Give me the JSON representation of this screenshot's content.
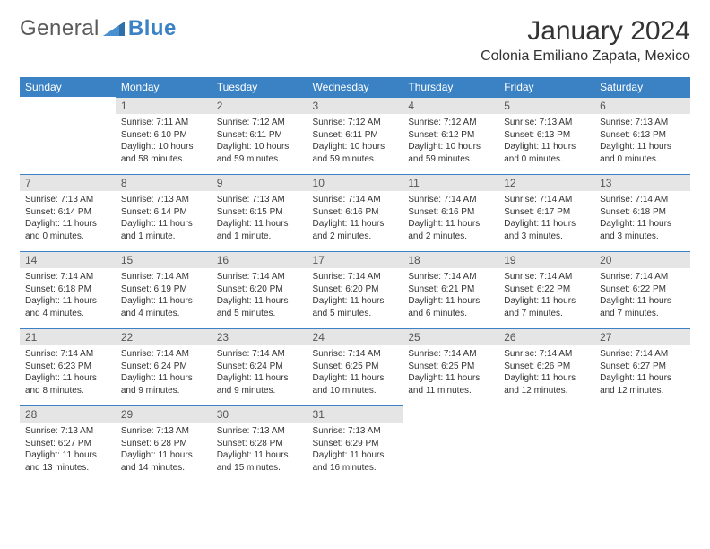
{
  "logo": {
    "general": "General",
    "blue": "Blue"
  },
  "title": "January 2024",
  "location": "Colonia Emiliano Zapata, Mexico",
  "colors": {
    "accent": "#3b82c4",
    "daynum_bg": "#e5e5e5"
  },
  "weekdays": [
    "Sunday",
    "Monday",
    "Tuesday",
    "Wednesday",
    "Thursday",
    "Friday",
    "Saturday"
  ],
  "weeks": [
    [
      null,
      {
        "n": "1",
        "sr": "Sunrise: 7:11 AM",
        "ss": "Sunset: 6:10 PM",
        "d1": "Daylight: 10 hours",
        "d2": "and 58 minutes."
      },
      {
        "n": "2",
        "sr": "Sunrise: 7:12 AM",
        "ss": "Sunset: 6:11 PM",
        "d1": "Daylight: 10 hours",
        "d2": "and 59 minutes."
      },
      {
        "n": "3",
        "sr": "Sunrise: 7:12 AM",
        "ss": "Sunset: 6:11 PM",
        "d1": "Daylight: 10 hours",
        "d2": "and 59 minutes."
      },
      {
        "n": "4",
        "sr": "Sunrise: 7:12 AM",
        "ss": "Sunset: 6:12 PM",
        "d1": "Daylight: 10 hours",
        "d2": "and 59 minutes."
      },
      {
        "n": "5",
        "sr": "Sunrise: 7:13 AM",
        "ss": "Sunset: 6:13 PM",
        "d1": "Daylight: 11 hours",
        "d2": "and 0 minutes."
      },
      {
        "n": "6",
        "sr": "Sunrise: 7:13 AM",
        "ss": "Sunset: 6:13 PM",
        "d1": "Daylight: 11 hours",
        "d2": "and 0 minutes."
      }
    ],
    [
      {
        "n": "7",
        "sr": "Sunrise: 7:13 AM",
        "ss": "Sunset: 6:14 PM",
        "d1": "Daylight: 11 hours",
        "d2": "and 0 minutes."
      },
      {
        "n": "8",
        "sr": "Sunrise: 7:13 AM",
        "ss": "Sunset: 6:14 PM",
        "d1": "Daylight: 11 hours",
        "d2": "and 1 minute."
      },
      {
        "n": "9",
        "sr": "Sunrise: 7:13 AM",
        "ss": "Sunset: 6:15 PM",
        "d1": "Daylight: 11 hours",
        "d2": "and 1 minute."
      },
      {
        "n": "10",
        "sr": "Sunrise: 7:14 AM",
        "ss": "Sunset: 6:16 PM",
        "d1": "Daylight: 11 hours",
        "d2": "and 2 minutes."
      },
      {
        "n": "11",
        "sr": "Sunrise: 7:14 AM",
        "ss": "Sunset: 6:16 PM",
        "d1": "Daylight: 11 hours",
        "d2": "and 2 minutes."
      },
      {
        "n": "12",
        "sr": "Sunrise: 7:14 AM",
        "ss": "Sunset: 6:17 PM",
        "d1": "Daylight: 11 hours",
        "d2": "and 3 minutes."
      },
      {
        "n": "13",
        "sr": "Sunrise: 7:14 AM",
        "ss": "Sunset: 6:18 PM",
        "d1": "Daylight: 11 hours",
        "d2": "and 3 minutes."
      }
    ],
    [
      {
        "n": "14",
        "sr": "Sunrise: 7:14 AM",
        "ss": "Sunset: 6:18 PM",
        "d1": "Daylight: 11 hours",
        "d2": "and 4 minutes."
      },
      {
        "n": "15",
        "sr": "Sunrise: 7:14 AM",
        "ss": "Sunset: 6:19 PM",
        "d1": "Daylight: 11 hours",
        "d2": "and 4 minutes."
      },
      {
        "n": "16",
        "sr": "Sunrise: 7:14 AM",
        "ss": "Sunset: 6:20 PM",
        "d1": "Daylight: 11 hours",
        "d2": "and 5 minutes."
      },
      {
        "n": "17",
        "sr": "Sunrise: 7:14 AM",
        "ss": "Sunset: 6:20 PM",
        "d1": "Daylight: 11 hours",
        "d2": "and 5 minutes."
      },
      {
        "n": "18",
        "sr": "Sunrise: 7:14 AM",
        "ss": "Sunset: 6:21 PM",
        "d1": "Daylight: 11 hours",
        "d2": "and 6 minutes."
      },
      {
        "n": "19",
        "sr": "Sunrise: 7:14 AM",
        "ss": "Sunset: 6:22 PM",
        "d1": "Daylight: 11 hours",
        "d2": "and 7 minutes."
      },
      {
        "n": "20",
        "sr": "Sunrise: 7:14 AM",
        "ss": "Sunset: 6:22 PM",
        "d1": "Daylight: 11 hours",
        "d2": "and 7 minutes."
      }
    ],
    [
      {
        "n": "21",
        "sr": "Sunrise: 7:14 AM",
        "ss": "Sunset: 6:23 PM",
        "d1": "Daylight: 11 hours",
        "d2": "and 8 minutes."
      },
      {
        "n": "22",
        "sr": "Sunrise: 7:14 AM",
        "ss": "Sunset: 6:24 PM",
        "d1": "Daylight: 11 hours",
        "d2": "and 9 minutes."
      },
      {
        "n": "23",
        "sr": "Sunrise: 7:14 AM",
        "ss": "Sunset: 6:24 PM",
        "d1": "Daylight: 11 hours",
        "d2": "and 9 minutes."
      },
      {
        "n": "24",
        "sr": "Sunrise: 7:14 AM",
        "ss": "Sunset: 6:25 PM",
        "d1": "Daylight: 11 hours",
        "d2": "and 10 minutes."
      },
      {
        "n": "25",
        "sr": "Sunrise: 7:14 AM",
        "ss": "Sunset: 6:25 PM",
        "d1": "Daylight: 11 hours",
        "d2": "and 11 minutes."
      },
      {
        "n": "26",
        "sr": "Sunrise: 7:14 AM",
        "ss": "Sunset: 6:26 PM",
        "d1": "Daylight: 11 hours",
        "d2": "and 12 minutes."
      },
      {
        "n": "27",
        "sr": "Sunrise: 7:14 AM",
        "ss": "Sunset: 6:27 PM",
        "d1": "Daylight: 11 hours",
        "d2": "and 12 minutes."
      }
    ],
    [
      {
        "n": "28",
        "sr": "Sunrise: 7:13 AM",
        "ss": "Sunset: 6:27 PM",
        "d1": "Daylight: 11 hours",
        "d2": "and 13 minutes."
      },
      {
        "n": "29",
        "sr": "Sunrise: 7:13 AM",
        "ss": "Sunset: 6:28 PM",
        "d1": "Daylight: 11 hours",
        "d2": "and 14 minutes."
      },
      {
        "n": "30",
        "sr": "Sunrise: 7:13 AM",
        "ss": "Sunset: 6:28 PM",
        "d1": "Daylight: 11 hours",
        "d2": "and 15 minutes."
      },
      {
        "n": "31",
        "sr": "Sunrise: 7:13 AM",
        "ss": "Sunset: 6:29 PM",
        "d1": "Daylight: 11 hours",
        "d2": "and 16 minutes."
      },
      null,
      null,
      null
    ]
  ]
}
